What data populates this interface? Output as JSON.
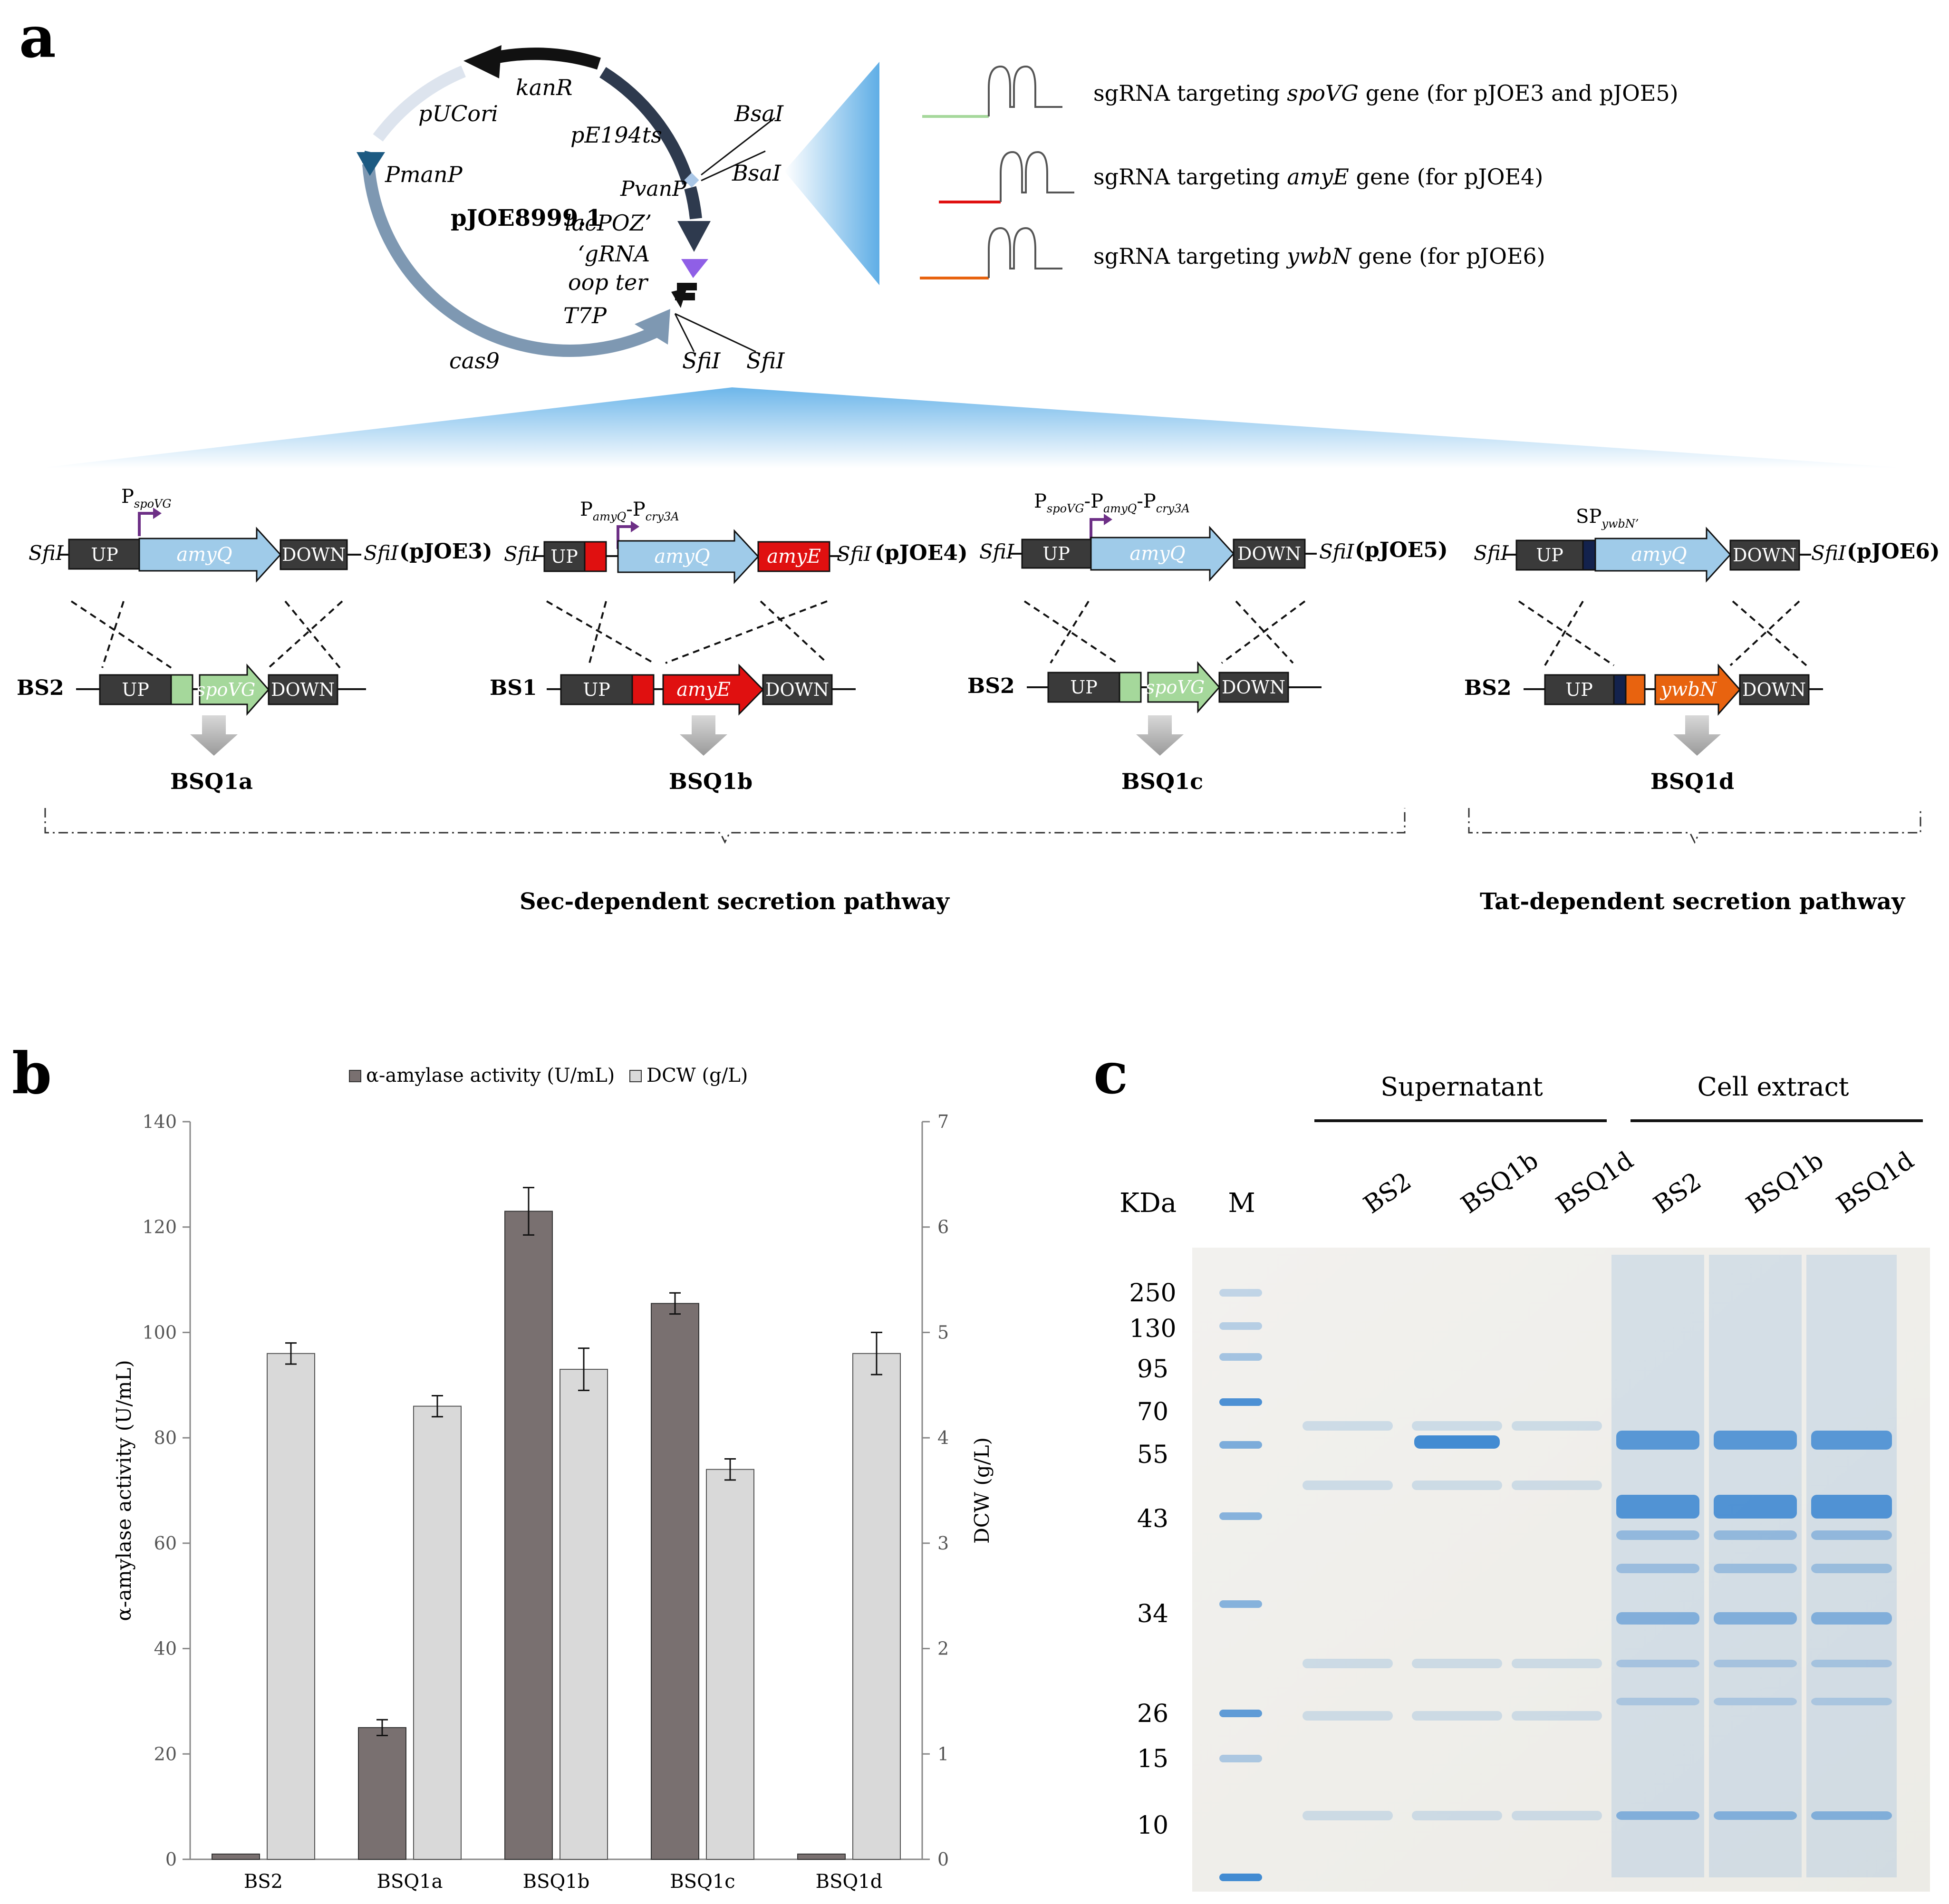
{
  "colors": {
    "dark_gray": "#3a3a3a",
    "sky_blue": "#9fcbe9",
    "red": "#e01010",
    "light_green": "#a5d89b",
    "orange": "#e8630f",
    "purple": "#6d2f86",
    "navy": "#13224d",
    "bar_activity": "#797070",
    "bar_dcw": "#d9d9d9",
    "gel_blue": "#2f7fcf"
  },
  "panels": {
    "a": "a",
    "b": "b",
    "c": "c"
  },
  "plasmid": {
    "name": "pJOE8999.1",
    "kanR": "kanR",
    "pUCori": "pUCori",
    "PmanP": "PmanP",
    "pE194ts": "pE194ts",
    "PvanP": "PvanP",
    "BsaI_1": "BsaI",
    "BsaI_2": "BsaI",
    "lacPOZ": "lacPOZ’",
    "gRNA": "‘gRNA",
    "oop_ter": "oop ter",
    "T7P": "T7P",
    "cas9": "cas9",
    "SfiI_1": "SfiI",
    "SfiI_2": "SfiI"
  },
  "sgrna": [
    {
      "pre": "sgRNA targeting ",
      "gene": "spoVG",
      "post": " gene  (for pJOE3 and pJOE5)",
      "color": "#a5d89b"
    },
    {
      "pre": "sgRNA targeting ",
      "gene": "amyE",
      "post": " gene  (for pJOE4)",
      "color": "#e01010"
    },
    {
      "pre": "sgRNA targeting ",
      "gene": "ywbN",
      "post": " gene  (for pJOE6)",
      "color": "#e8630f"
    }
  ],
  "constructs": {
    "sfiI": "SfiI",
    "up": "UP",
    "down": "DOWN",
    "amyQ": "amyQ",
    "amyE": "amyE",
    "spoVG": "spoVG",
    "ywbN": "ywbN",
    "pJOE3": "(pJOE3)",
    "pJOE4": "(pJOE4)",
    "pJOE5": "(pJOE5)",
    "pJOE6": "(pJOE6)",
    "c1_promoter": "P",
    "c1_promoter_sub": "spoVG",
    "c2_p1": "P",
    "c2_p1_sub": "amyQ",
    "c2_dash": "-P",
    "c2_p2_sub": "cry3A",
    "c3_p1": "P",
    "c3_p1_sub": "spoVG",
    "c3_dash1": "-P",
    "c3_p2_sub": "amyQ",
    "c3_dash2": "-P",
    "c3_p3_sub": "cry3A",
    "c4_sp": "SP",
    "c4_sp_sub": "ywbN’",
    "host1": "BS2",
    "host2": "BS1",
    "host3": "BS2",
    "host4": "BS2",
    "strain1": "BSQ1a",
    "strain2": "BSQ1b",
    "strain3": "BSQ1c",
    "strain4": "BSQ1d",
    "pathway_sec": "Sec-dependent secretion pathway",
    "pathway_tat": "Tat-dependent secretion pathway"
  },
  "chart_data": {
    "type": "bar",
    "title": "",
    "categories": [
      "BS2",
      "BSQ1a",
      "BSQ1b",
      "BSQ1c",
      "BSQ1d"
    ],
    "series": [
      {
        "name": "α-amylase activity (U/mL)",
        "axis": "left",
        "values": [
          1,
          25,
          123,
          105.5,
          1
        ],
        "errors": [
          0,
          1.5,
          4.5,
          2,
          0
        ]
      },
      {
        "name": "DCW (g/L)",
        "axis": "right",
        "values": [
          4.8,
          4.3,
          4.65,
          3.7,
          4.8
        ],
        "errors": [
          0.1,
          0.1,
          0.2,
          0.1,
          0.2
        ]
      }
    ],
    "ylabel": "α-amylase activity (U/mL)",
    "y2label": "DCW (g/L)",
    "ylim": [
      0,
      140
    ],
    "y2lim": [
      0,
      7
    ],
    "yticks": [
      "0",
      "20",
      "40",
      "60",
      "80",
      "100",
      "120",
      "140"
    ],
    "y2ticks": [
      "0",
      "1",
      "2",
      "3",
      "4",
      "5",
      "6",
      "7"
    ],
    "legend_position": "top"
  },
  "gel": {
    "group_supernatant": "Supernatant",
    "group_cell_extract": "Cell extract",
    "kda_label": "KDa",
    "marker_label": "M",
    "lanes": [
      "BS2",
      "BSQ1b",
      "BSQ1d",
      "BS2",
      "BSQ1b",
      "BSQ1d"
    ],
    "markers": [
      "250",
      "130",
      "95",
      "70",
      "55",
      "43",
      "34",
      "26",
      "15",
      "10"
    ]
  }
}
